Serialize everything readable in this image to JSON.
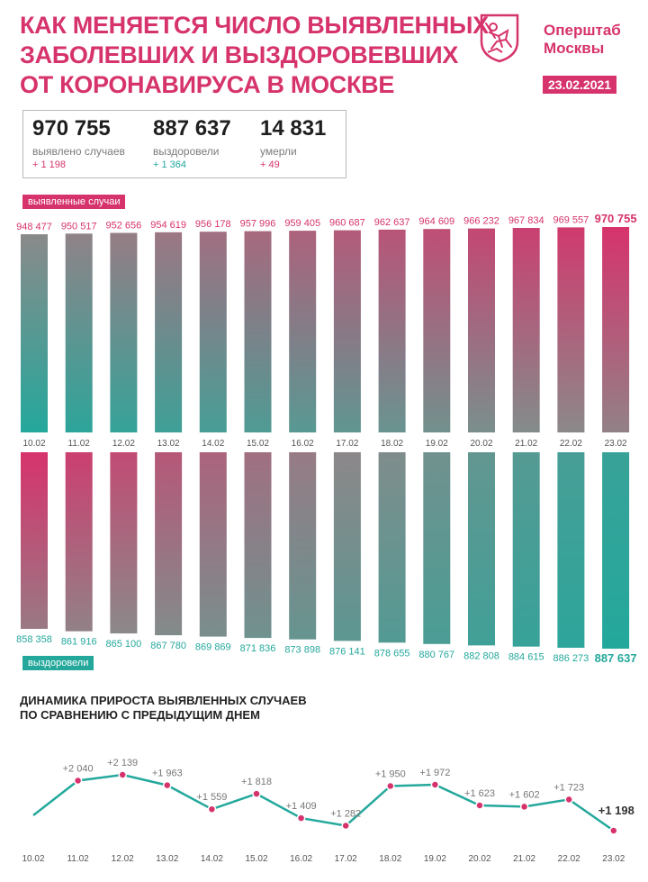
{
  "header": {
    "title_lines": [
      "КАК МЕНЯЕТСЯ ЧИСЛО ВЫЯВЛЕННЫХ",
      "ЗАБОЛЕВШИХ И ВЫЗДОРОВЕВШИХ",
      "ОТ КОРОНАВИРУСА В МОСКВЕ"
    ],
    "brand_line1": "Оперштаб",
    "brand_line2": "Москвы",
    "date": "23.02.2021",
    "logo_icon": "moscow-coat-of-arms-icon"
  },
  "summary": {
    "cases": {
      "value": "970 755",
      "label": "выявлено случаев",
      "delta": "+ 1 198"
    },
    "recovered": {
      "value": "887 637",
      "label": "выздоровели",
      "delta": "+ 1 364"
    },
    "deaths": {
      "value": "14 831",
      "label": "умерли",
      "delta": "+ 49"
    }
  },
  "labels": {
    "cases_tag": "выявленные случаи",
    "recovered_tag": "выздоровели",
    "dynamics_title_line1": "ДИНАМИКА ПРИРОСТА ВЫЯВЛЕННЫХ СЛУЧАЕВ",
    "dynamics_title_line2": "ПО СРАВНЕНИЮ С ПРЕДЫДУЩИМ ДНЕМ"
  },
  "colors": {
    "pink": "#d6336c",
    "teal": "#24a89c",
    "gray": "#8a8a8a"
  },
  "chart_data": [
    {
      "type": "bar",
      "categories": [
        "10.02",
        "11.02",
        "12.02",
        "13.02",
        "14.02",
        "15.02",
        "16.02",
        "17.02",
        "18.02",
        "19.02",
        "20.02",
        "21.02",
        "22.02",
        "23.02"
      ],
      "series": [
        {
          "name": "выявленные случаи",
          "values": [
            948477,
            950517,
            952656,
            954619,
            956178,
            957996,
            959405,
            960687,
            962637,
            964609,
            966232,
            967834,
            969557,
            970755
          ],
          "labels": [
            "948 477",
            "950 517",
            "952 656",
            "954 619",
            "956 178",
            "957 996",
            "959 405",
            "960 687",
            "962 637",
            "964 609",
            "966 232",
            "967 834",
            "969 557",
            "970 755"
          ]
        },
        {
          "name": "выздоровели",
          "values": [
            858358,
            861916,
            865100,
            867780,
            869869,
            871836,
            873898,
            876141,
            878655,
            880767,
            882808,
            884615,
            886273,
            887637
          ],
          "labels": [
            "858 358",
            "861 916",
            "865 100",
            "867 780",
            "869 869",
            "871 836",
            "873 898",
            "876 141",
            "878 655",
            "880 767",
            "882 808",
            "884 615",
            "886 273",
            "887 637"
          ]
        }
      ]
    },
    {
      "type": "line",
      "x": [
        "10.02",
        "11.02",
        "12.02",
        "13.02",
        "14.02",
        "15.02",
        "16.02",
        "17.02",
        "18.02",
        "19.02",
        "20.02",
        "21.02",
        "22.02",
        "23.02"
      ],
      "title": "ДИНАМИКА ПРИРОСТА ВЫЯВЛЕННЫХ СЛУЧАЕВ ПО СРАВНЕНИЮ С ПРЕДЫДУЩИМ ДНЕМ",
      "series": [
        {
          "values": [
            null,
            2040,
            2139,
            1963,
            1559,
            1818,
            1409,
            1282,
            1950,
            1972,
            1623,
            1602,
            1723,
            1198
          ],
          "labels": [
            "",
            "+2 040",
            "+2 139",
            "+1 963",
            "+1 559",
            "+1 818",
            "+1 409",
            "+1 282",
            "+1 950",
            "+1 972",
            "+1 623",
            "+1 602",
            "+1 723",
            "+1 198"
          ]
        }
      ]
    }
  ]
}
